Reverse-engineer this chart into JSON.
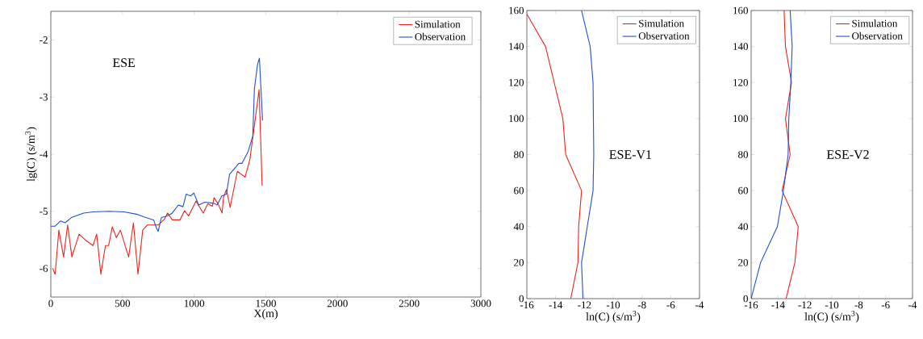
{
  "chart_data": [
    {
      "type": "line",
      "xlabel": "X(m)",
      "ylabel": "lg(C) (s/m$^{3}$)",
      "annotations": [
        "ESE"
      ],
      "xlim": [
        0,
        3000
      ],
      "ylim": [
        -6.5,
        -1.5
      ],
      "xticks": [
        0,
        500,
        1000,
        1500,
        2000,
        2500,
        3000
      ],
      "yticks": [
        -6,
        -5,
        -4,
        -3,
        -2
      ],
      "legend": "top right",
      "grid": false,
      "series": [
        {
          "name": "Simulation",
          "color": "#e8261f",
          "x": [
            13,
            30,
            56,
            89,
            117,
            147,
            197,
            240,
            294,
            320,
            349,
            381,
            403,
            429,
            457,
            485,
            543,
            576,
            608,
            641,
            673,
            749,
            792,
            814,
            847,
            901,
            933,
            961,
            1013,
            1063,
            1095,
            1127,
            1139,
            1167,
            1195,
            1204,
            1225,
            1251,
            1301,
            1355,
            1388,
            1420,
            1453,
            1474
          ],
          "values": [
            -6.0,
            -6.1,
            -5.33,
            -5.8,
            -5.24,
            -5.8,
            -5.4,
            -5.5,
            -5.6,
            -5.4,
            -6.1,
            -5.6,
            -5.6,
            -5.27,
            -5.46,
            -5.33,
            -5.8,
            -5.2,
            -6.1,
            -5.33,
            -5.24,
            -5.24,
            -5.14,
            -5.03,
            -5.15,
            -5.15,
            -4.99,
            -5.08,
            -4.82,
            -5.03,
            -4.87,
            -4.91,
            -4.76,
            -4.87,
            -5.03,
            -4.76,
            -4.62,
            -4.93,
            -4.3,
            -4.4,
            -4.1,
            -3.5,
            -2.87,
            -4.55
          ]
        },
        {
          "name": "Observation",
          "color": "#2050d0",
          "x": [
            0,
            30,
            67,
            100,
            143,
            229,
            294,
            403,
            511,
            597,
            662,
            717,
            738,
            749,
            771,
            814,
            847,
            890,
            922,
            944,
            976,
            998,
            1031,
            1074,
            1139,
            1160,
            1193,
            1225,
            1247,
            1312,
            1334,
            1377,
            1409,
            1420,
            1442,
            1455,
            1477
          ],
          "values": [
            -5.26,
            -5.26,
            -5.17,
            -5.2,
            -5.11,
            -5.03,
            -5.01,
            -5.0,
            -5.01,
            -5.05,
            -5.11,
            -5.15,
            -5.3,
            -5.35,
            -5.11,
            -5.08,
            -5.03,
            -4.89,
            -4.92,
            -4.7,
            -4.73,
            -4.68,
            -4.89,
            -4.84,
            -4.86,
            -4.89,
            -4.73,
            -4.7,
            -4.35,
            -4.16,
            -4.16,
            -3.95,
            -3.68,
            -2.86,
            -2.43,
            -2.32,
            -3.41
          ]
        }
      ]
    },
    {
      "type": "line",
      "xlabel": "ln(C) (s/m$^{3}$)",
      "annotations": [
        "ESE-V1"
      ],
      "xlim": [
        -16,
        -4
      ],
      "ylim": [
        0,
        160
      ],
      "xticks": [
        -16,
        -14,
        -12,
        -10,
        -8,
        -6,
        -4
      ],
      "yticks": [
        0,
        20,
        40,
        60,
        80,
        100,
        120,
        140,
        160
      ],
      "legend": "top right",
      "grid": false,
      "series": [
        {
          "name": "Simulation",
          "color": "#e8261f",
          "x": [
            -12.95,
            -12.45,
            -12.4,
            -12.2,
            -13.3,
            -13.5,
            -14.7,
            -16.0
          ],
          "values": [
            0,
            20,
            40,
            60,
            80,
            100,
            140,
            158
          ]
        },
        {
          "name": "Observation",
          "color": "#2050d0",
          "x": [
            -12.1,
            -12.2,
            -11.8,
            -11.4,
            -11.35,
            -11.4,
            -11.6,
            -12.2
          ],
          "values": [
            0,
            20,
            40,
            60,
            80,
            120,
            140,
            160
          ]
        }
      ]
    },
    {
      "type": "line",
      "xlabel": "ln(C) (s/m$^{3}$)",
      "annotations": [
        "ESE-V2"
      ],
      "xlim": [
        -16,
        -4
      ],
      "ylim": [
        0,
        160
      ],
      "xticks": [
        -16,
        -14,
        -12,
        -10,
        -8,
        -6,
        -4
      ],
      "yticks": [
        0,
        20,
        40,
        60,
        80,
        100,
        120,
        140,
        160
      ],
      "legend": "top right",
      "grid": false,
      "series": [
        {
          "name": "Simulation",
          "color": "#e8261f",
          "x": [
            -13.4,
            -12.75,
            -12.5,
            -13.7,
            -13.1,
            -13.45,
            -13.0,
            -13.45,
            -13.55
          ],
          "values": [
            0,
            20,
            40,
            60,
            80,
            100,
            120,
            140,
            160
          ]
        },
        {
          "name": "Observation",
          "color": "#2050d0",
          "x": [
            -16.0,
            -15.3,
            -14.05,
            -13.6,
            -13.25,
            -13.2,
            -13.05,
            -12.95,
            -13.1
          ],
          "values": [
            0,
            20,
            40,
            60,
            80,
            100,
            120,
            140,
            160
          ]
        }
      ]
    }
  ]
}
